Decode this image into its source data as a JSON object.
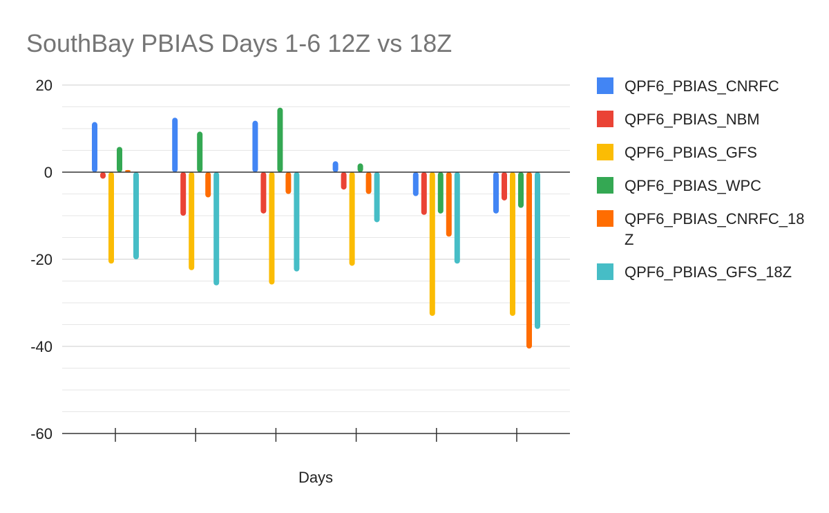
{
  "chart_data": {
    "type": "bar",
    "title": "SouthBay PBIAS Days 1-6 12Z vs 18Z",
    "xlabel": "Days",
    "ylabel": "",
    "categories": [
      "",
      "",
      "",
      "",
      "",
      ""
    ],
    "ylim": [
      -60,
      20
    ],
    "ytick_values": [
      20,
      0,
      -20,
      -40,
      -60
    ],
    "ytick_labels": [
      "20",
      "0",
      "-20",
      "-40",
      "-60"
    ],
    "grid": true,
    "legend_position": "right",
    "series": [
      {
        "name": "QPF6_PBIAS_CNRFC",
        "color": "#4285F4",
        "values": [
          11.5,
          12.5,
          11.8,
          2.5,
          -5.5,
          -9.5
        ]
      },
      {
        "name": "QPF6_PBIAS_NBM",
        "color": "#EA4335",
        "values": [
          -1.5,
          -10.0,
          -9.5,
          -4.0,
          -9.8,
          -6.5
        ]
      },
      {
        "name": "QPF6_PBIAS_GFS",
        "color": "#FBBC04",
        "values": [
          -21.0,
          -22.5,
          -25.8,
          -21.5,
          -33.0,
          -33.0
        ]
      },
      {
        "name": "QPF6_PBIAS_WPC",
        "color": "#34A853",
        "values": [
          5.8,
          9.3,
          14.8,
          2.0,
          -9.5,
          -8.2
        ]
      },
      {
        "name": "QPF6_PBIAS_CNRFC_18Z",
        "color": "#FF6D01",
        "values": [
          0.5,
          -5.8,
          -5.0,
          -5.0,
          -14.8,
          -40.5
        ]
      },
      {
        "name": "QPF6_PBIAS_GFS_18Z",
        "color": "#46BDC6",
        "values": [
          -20.0,
          -26.0,
          -22.8,
          -11.5,
          -21.0,
          -36.0
        ]
      }
    ]
  }
}
